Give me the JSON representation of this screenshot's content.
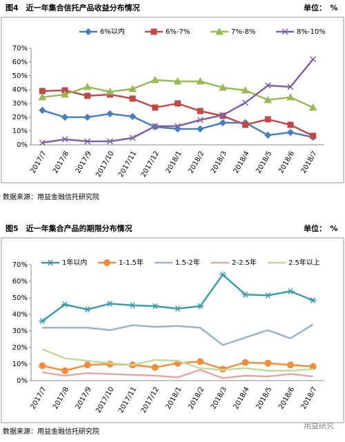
{
  "chart_data": [
    {
      "type": "line",
      "title": "图4　近一年集合信托产品收益分布情况",
      "unit": "单位：　%",
      "source": "数据来源：用益金融信托研究院",
      "categories": [
        "2017/7",
        "2017/8",
        "2017/9",
        "2017/10",
        "2017/11",
        "2017/12",
        "2018/1",
        "2018/2",
        "2018/3",
        "2018/4",
        "2018/5",
        "2018/6",
        "2018/7"
      ],
      "series": [
        {
          "name": "6%以内",
          "color": "#4a7ebb",
          "marker": "diamond",
          "values": [
            25,
            20,
            20,
            22.5,
            20.5,
            13,
            11.5,
            11.5,
            16,
            16,
            7,
            9,
            5.5
          ]
        },
        {
          "name": "6%-7%",
          "color": "#be4b48",
          "marker": "square",
          "values": [
            39,
            39.5,
            35.5,
            36.5,
            33.5,
            27,
            30,
            24.5,
            21,
            14.5,
            18.5,
            14.5,
            6.5
          ]
        },
        {
          "name": "7%-8%",
          "color": "#98b954",
          "marker": "triangle",
          "values": [
            34.5,
            36.5,
            42,
            38.5,
            40.5,
            47,
            46,
            46,
            41.5,
            39.5,
            32.5,
            34.5,
            27
          ]
        },
        {
          "name": "8%-10%",
          "color": "#7d60a0",
          "marker": "cross",
          "values": [
            1.5,
            4,
            2.5,
            2.5,
            5,
            13.5,
            13.5,
            18,
            21.5,
            30.5,
            43,
            42,
            62
          ]
        }
      ],
      "ylim": [
        0,
        70
      ],
      "yticks": [
        {
          "value": 0,
          "label": "0%"
        },
        {
          "value": 10,
          "label": "10%"
        },
        {
          "value": 20,
          "label": "20%"
        },
        {
          "value": 30,
          "label": "30%"
        },
        {
          "value": 40,
          "label": "40%"
        },
        {
          "value": 50,
          "label": "50%"
        },
        {
          "value": 60,
          "label": "60%"
        },
        {
          "value": 70,
          "label": "70%"
        }
      ],
      "grid": false
    },
    {
      "type": "line",
      "title": "图5　近一年集合产品的期限分布情况",
      "unit": "单位：　%",
      "source": "数据来源：用益金融信托研究院",
      "categories": [
        "2017/7",
        "2017/8",
        "2017/9",
        "2017/10",
        "2017/11",
        "2017/12",
        "2018/1",
        "2018/2",
        "2018/3",
        "2018/4",
        "2018/5",
        "2018/6",
        "2018/7"
      ],
      "series": [
        {
          "name": "1年以内",
          "color": "#3b9aa9",
          "marker": "star",
          "values": [
            36,
            46,
            43,
            46.5,
            45.5,
            45,
            43.5,
            45,
            64,
            52,
            51.5,
            54,
            48.5
          ]
        },
        {
          "name": "1-1.5年",
          "color": "#f28e3c",
          "marker": "circle",
          "values": [
            9,
            6,
            9.5,
            10,
            9.5,
            8,
            10.5,
            11.5,
            7,
            11,
            10.5,
            9.5,
            8.5
          ]
        },
        {
          "name": "1.5-2年",
          "color": "#9bb1cf",
          "marker": "dash",
          "values": [
            32,
            32,
            32,
            30.5,
            33.5,
            32.5,
            33,
            32,
            21.5,
            26,
            30.5,
            25.5,
            34
          ]
        },
        {
          "name": "2-2.5年",
          "color": "#e2a8a6",
          "marker": "dash",
          "values": [
            5,
            3,
            4.5,
            4,
            3.5,
            3,
            2,
            6.5,
            1.5,
            3,
            2.5,
            4,
            2.5
          ]
        },
        {
          "name": "2.5年以上",
          "color": "#c4d89b",
          "marker": "dash",
          "values": [
            19,
            13.5,
            12,
            10.5,
            9.5,
            12.5,
            12,
            7.5,
            6.5,
            7.5,
            6,
            6,
            7
          ]
        }
      ],
      "ylim": [
        0,
        70
      ],
      "yticks": [
        {
          "value": 0,
          "label": "0%"
        },
        {
          "value": 10,
          "label": "10%"
        },
        {
          "value": 20,
          "label": "20%"
        },
        {
          "value": 30,
          "label": "30%"
        },
        {
          "value": 40,
          "label": "40%"
        },
        {
          "value": 50,
          "label": "50%"
        },
        {
          "value": 60,
          "label": "60%"
        },
        {
          "value": 70,
          "label": "70%"
        }
      ],
      "grid": false
    }
  ],
  "watermark": "用益研究"
}
